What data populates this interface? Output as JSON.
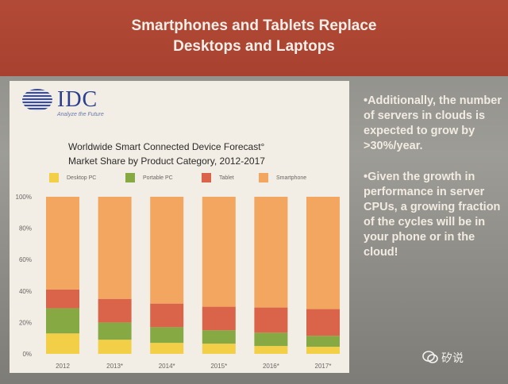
{
  "slide": {
    "title_line1": "Smartphones and Tablets Replace",
    "title_line2": "Desktops and Laptops",
    "logo_text": "IDC",
    "logo_tagline": "Analyze the Future",
    "bullets": [
      "•Additionally, the number of servers in clouds is expected to grow by >30%/year.",
      "•Given the growth in performance in server CPUs, a growing fraction of the cycles will be in your phone or in the cloud!"
    ],
    "watermark": "矽说",
    "colors": {
      "header": "#a8412f",
      "panel": "#f2eee6"
    }
  },
  "chart_data": {
    "type": "bar",
    "stacked": true,
    "title": "Worldwide Smart Connected Device Forecast° Market Share by Product Category, 2012-2017",
    "title_line1": "Worldwide Smart Connected Device Forecast°",
    "title_line2": "Market Share by Product Category, 2012-2017",
    "categories": [
      "2012",
      "2013*",
      "2014*",
      "2015*",
      "2016*",
      "2017*"
    ],
    "series": [
      {
        "name": "Desktop PC",
        "color": "#f2cf46",
        "values": [
          13,
          9,
          7,
          6.5,
          5,
          4.5
        ]
      },
      {
        "name": "Portable PC",
        "color": "#86a944",
        "values": [
          16,
          11,
          10,
          8.5,
          8.5,
          7
        ]
      },
      {
        "name": "Tablet",
        "color": "#d9644a",
        "values": [
          12,
          15,
          15,
          15,
          16,
          17
        ]
      },
      {
        "name": "Smartphone",
        "color": "#f3a660",
        "values": [
          59,
          65,
          68,
          70,
          70.5,
          71.5
        ]
      }
    ],
    "yticks": [
      "0%",
      "20%",
      "40%",
      "60%",
      "80%",
      "100%"
    ],
    "ylim": [
      0,
      100
    ],
    "legend_position": "top",
    "grid": false
  }
}
